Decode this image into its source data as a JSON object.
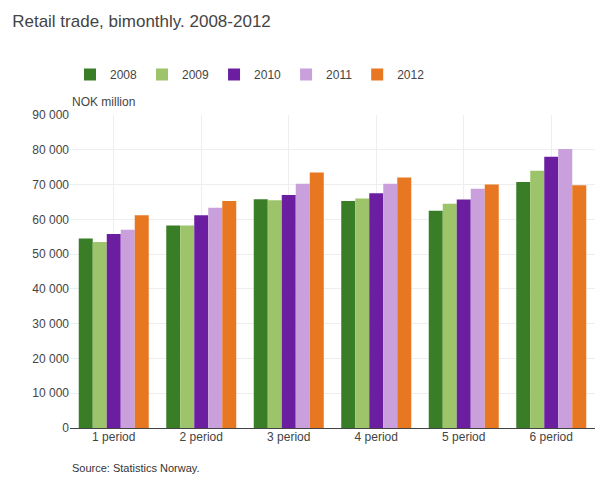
{
  "chart_data": {
    "type": "bar",
    "title": "Retail trade, bimonthly. 2008-2012",
    "ylabel": "NOK million",
    "annotations": [
      "Source: Statistics Norway."
    ],
    "categories": [
      "1 period",
      "2 period",
      "3 period",
      "4 period",
      "5 period",
      "6 period"
    ],
    "series": [
      {
        "name": "2008",
        "color": "#3a7d27",
        "values": [
          54500,
          58200,
          65800,
          65300,
          62500,
          70700
        ]
      },
      {
        "name": "2009",
        "color": "#9dc46a",
        "values": [
          53500,
          58200,
          65500,
          66000,
          64500,
          74000
        ]
      },
      {
        "name": "2010",
        "color": "#6b1fa0",
        "values": [
          55800,
          61200,
          67000,
          67500,
          65700,
          78000
        ]
      },
      {
        "name": "2011",
        "color": "#c9a0dc",
        "values": [
          57000,
          63300,
          70200,
          70200,
          68800,
          80200
        ]
      },
      {
        "name": "2012",
        "color": "#e87722",
        "values": [
          61200,
          65300,
          73500,
          72000,
          70000,
          69800
        ]
      }
    ],
    "ylim": [
      0,
      90000
    ],
    "yticks": [
      0,
      {
        "value": 10000,
        "label": "10 000"
      },
      {
        "value": 20000,
        "label": "20 000"
      },
      {
        "value": 30000,
        "label": "30 000"
      },
      {
        "value": 40000,
        "label": "40 000"
      },
      {
        "value": 50000,
        "label": "50 000"
      },
      {
        "value": 60000,
        "label": "60 000"
      },
      {
        "value": 70000,
        "label": "70 000"
      },
      {
        "value": 80000,
        "label": "80 000"
      },
      {
        "value": 90000,
        "label": "90 000"
      }
    ],
    "grid": true,
    "legend": "upper left"
  }
}
